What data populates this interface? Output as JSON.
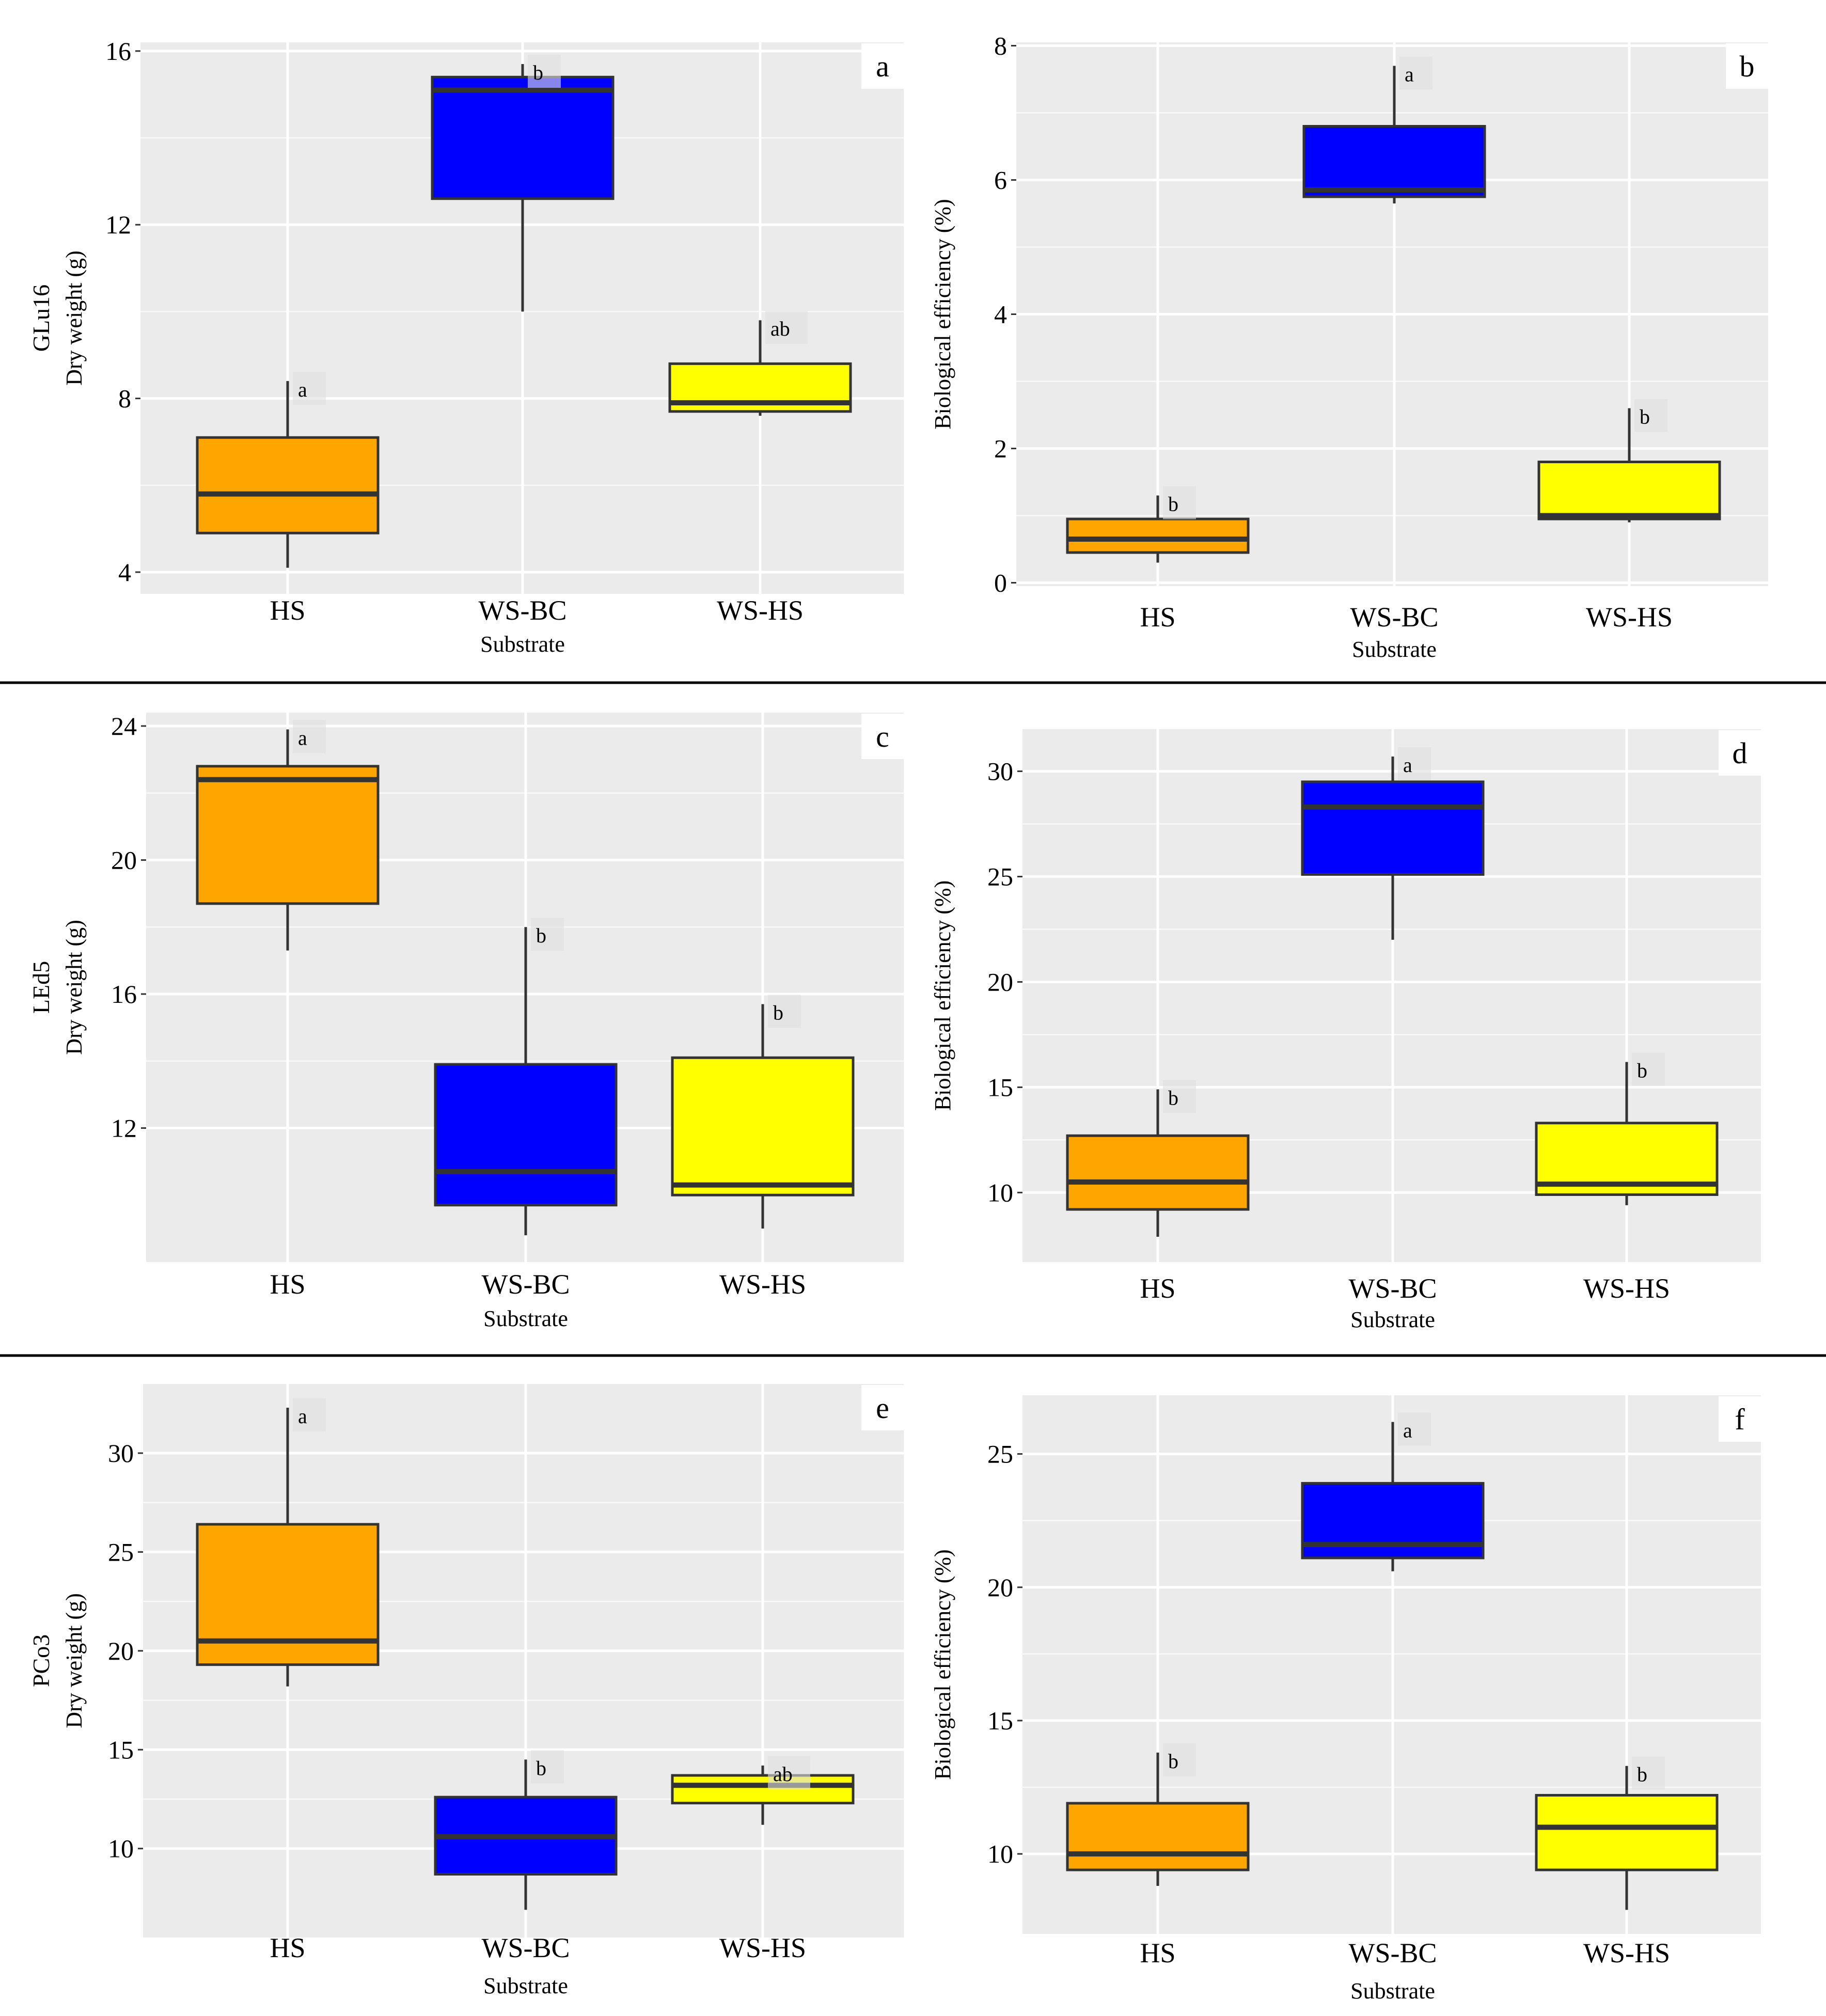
{
  "colors": {
    "panel_bg": "#ebebeb",
    "grid": "#ffffff",
    "HS": "#ffa500",
    "WS-BC": "#0000ff",
    "WS-HS": "#ffff00",
    "median": "#333333",
    "whisker": "#333333",
    "divider": "#000000"
  },
  "chart_data": [
    {
      "panel": "a",
      "type": "box",
      "strain_label": "GLu16",
      "ylabel": "Dry weight (g)",
      "xlabel": "Substrate",
      "categories": [
        "HS",
        "WS-BC",
        "WS-HS"
      ],
      "yticks": [
        4,
        8,
        12,
        16
      ],
      "ylim": [
        3.5,
        16.2
      ],
      "boxes": [
        {
          "category": "HS",
          "whisker_low": 4.1,
          "q1": 4.9,
          "median": 5.8,
          "q3": 7.1,
          "whisker_high": 8.4,
          "letter": "a"
        },
        {
          "category": "WS-BC",
          "whisker_low": 10.0,
          "q1": 12.6,
          "median": 15.1,
          "q3": 15.4,
          "whisker_high": 15.7,
          "letter": "b"
        },
        {
          "category": "WS-HS",
          "whisker_low": 7.6,
          "q1": 7.7,
          "median": 7.9,
          "q3": 8.8,
          "whisker_high": 9.8,
          "letter": "ab"
        }
      ]
    },
    {
      "panel": "b",
      "type": "box",
      "strain_label": "",
      "ylabel": "Biological efficiency (%)",
      "xlabel": "Substrate",
      "categories": [
        "HS",
        "WS-BC",
        "WS-HS"
      ],
      "yticks": [
        0,
        2,
        4,
        6,
        8
      ],
      "ylim": [
        -0.05,
        8.05
      ],
      "boxes": [
        {
          "category": "HS",
          "whisker_low": 0.3,
          "q1": 0.45,
          "median": 0.65,
          "q3": 0.95,
          "whisker_high": 1.3,
          "letter": "b"
        },
        {
          "category": "WS-BC",
          "whisker_low": 5.65,
          "q1": 5.75,
          "median": 5.85,
          "q3": 6.8,
          "whisker_high": 7.7,
          "letter": "a"
        },
        {
          "category": "WS-HS",
          "whisker_low": 0.9,
          "q1": 0.95,
          "median": 1.0,
          "q3": 1.8,
          "whisker_high": 2.6,
          "letter": "b"
        }
      ]
    },
    {
      "panel": "c",
      "type": "box",
      "strain_label": "LEd5",
      "ylabel": "Dry weight (g)",
      "xlabel": "Substrate",
      "categories": [
        "HS",
        "WS-BC",
        "WS-HS"
      ],
      "yticks": [
        12,
        16,
        20,
        24
      ],
      "ylim": [
        8.0,
        24.4
      ],
      "boxes": [
        {
          "category": "HS",
          "whisker_low": 17.3,
          "q1": 18.7,
          "median": 22.4,
          "q3": 22.8,
          "whisker_high": 23.9,
          "letter": "a"
        },
        {
          "category": "WS-BC",
          "whisker_low": 8.8,
          "q1": 9.7,
          "median": 10.7,
          "q3": 13.9,
          "whisker_high": 18.0,
          "letter": "b"
        },
        {
          "category": "WS-HS",
          "whisker_low": 9.0,
          "q1": 10.0,
          "median": 10.3,
          "q3": 14.1,
          "whisker_high": 15.7,
          "letter": "b"
        }
      ]
    },
    {
      "panel": "d",
      "type": "box",
      "strain_label": "",
      "ylabel": "Biological efficiency (%)",
      "xlabel": "Substrate",
      "categories": [
        "HS",
        "WS-BC",
        "WS-HS"
      ],
      "yticks": [
        10,
        15,
        20,
        25,
        30
      ],
      "ylim": [
        6.7,
        32.0
      ],
      "boxes": [
        {
          "category": "HS",
          "whisker_low": 7.9,
          "q1": 9.2,
          "median": 10.5,
          "q3": 12.7,
          "whisker_high": 14.9,
          "letter": "b"
        },
        {
          "category": "WS-BC",
          "whisker_low": 22.0,
          "q1": 25.1,
          "median": 28.3,
          "q3": 29.5,
          "whisker_high": 30.7,
          "letter": "a"
        },
        {
          "category": "WS-HS",
          "whisker_low": 9.4,
          "q1": 9.9,
          "median": 10.4,
          "q3": 13.3,
          "whisker_high": 16.2,
          "letter": "b"
        }
      ]
    },
    {
      "panel": "e",
      "type": "box",
      "strain_label": "PCo3",
      "ylabel": "Dry weight (g)",
      "xlabel": "Substrate",
      "categories": [
        "HS",
        "WS-BC",
        "WS-HS"
      ],
      "yticks": [
        10,
        15,
        20,
        25,
        30
      ],
      "ylim": [
        5.5,
        33.5
      ],
      "boxes": [
        {
          "category": "HS",
          "whisker_low": 18.2,
          "q1": 19.3,
          "median": 20.5,
          "q3": 26.4,
          "whisker_high": 32.3,
          "letter": "a"
        },
        {
          "category": "WS-BC",
          "whisker_low": 6.9,
          "q1": 8.7,
          "median": 10.6,
          "q3": 12.6,
          "whisker_high": 14.5,
          "letter": "b"
        },
        {
          "category": "WS-HS",
          "whisker_low": 11.2,
          "q1": 12.3,
          "median": 13.2,
          "q3": 13.7,
          "whisker_high": 14.2,
          "letter": "ab"
        }
      ]
    },
    {
      "panel": "f",
      "type": "box",
      "strain_label": "",
      "ylabel": "Biological efficiency (%)",
      "xlabel": "Substrate",
      "categories": [
        "HS",
        "WS-BC",
        "WS-HS"
      ],
      "yticks": [
        10,
        15,
        20,
        25
      ],
      "ylim": [
        7.0,
        27.2
      ],
      "boxes": [
        {
          "category": "HS",
          "whisker_low": 8.8,
          "q1": 9.4,
          "median": 10.0,
          "q3": 11.9,
          "whisker_high": 13.8,
          "letter": "b"
        },
        {
          "category": "WS-BC",
          "whisker_low": 20.6,
          "q1": 21.1,
          "median": 21.6,
          "q3": 23.9,
          "whisker_high": 26.2,
          "letter": "a"
        },
        {
          "category": "WS-HS",
          "whisker_low": 7.9,
          "q1": 9.4,
          "median": 11.0,
          "q3": 12.2,
          "whisker_high": 13.3,
          "letter": "b"
        }
      ]
    }
  ]
}
